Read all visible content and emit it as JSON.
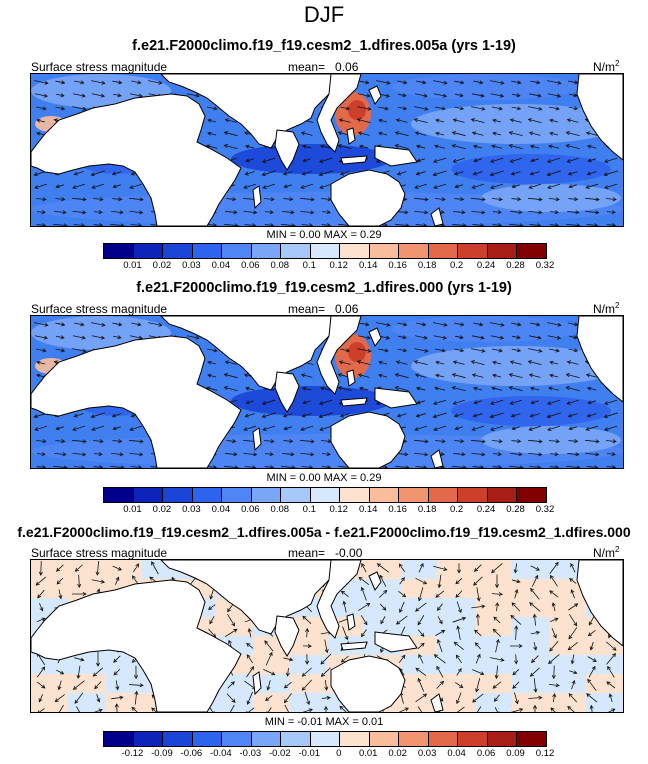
{
  "title": "DJF",
  "colors": {
    "seq": [
      "#00008b",
      "#0c24ba",
      "#1a45d6",
      "#2d64ec",
      "#4f86f4",
      "#79a6f7",
      "#a8c8fa",
      "#d6e8fd",
      "#fde3cf",
      "#f9bd9c",
      "#f19470",
      "#e26a4b",
      "#cb3f2b",
      "#a71e17",
      "#800000"
    ],
    "diff": [
      "#00008b",
      "#0c24ba",
      "#1a45d6",
      "#2d64ec",
      "#4f86f4",
      "#79a6f7",
      "#a8c8fa",
      "#d6e8fd",
      "#fde3cf",
      "#f9bd9c",
      "#f19470",
      "#e26a4b",
      "#cb3f2b",
      "#a71e17",
      "#800000"
    ]
  },
  "panels": [
    {
      "title": "f.e21.F2000climo.f19_f19.cesm2_1.dfires.005a (yrs 1-19)",
      "variable": "Surface stress magnitude",
      "mean_label": "mean=",
      "mean_value": "0.06",
      "units": "N/m",
      "units_exp": "2",
      "minmax": "MIN =   0.00 MAX =   0.29",
      "colorbar_labels": [
        "0.01",
        "0.02",
        "0.03",
        "0.04",
        "0.06",
        "0.08",
        "0.1",
        "0.12",
        "0.14",
        "0.16",
        "0.18",
        "0.2",
        "0.24",
        "0.28",
        "0.32"
      ]
    },
    {
      "title": "f.e21.F2000climo.f19_f19.cesm2_1.dfires.000 (yrs 1-19)",
      "variable": "Surface stress magnitude",
      "mean_label": "mean=",
      "mean_value": "0.06",
      "units": "N/m",
      "units_exp": "2",
      "minmax": "MIN =   0.00 MAX =   0.29",
      "colorbar_labels": [
        "0.01",
        "0.02",
        "0.03",
        "0.04",
        "0.06",
        "0.08",
        "0.1",
        "0.12",
        "0.14",
        "0.16",
        "0.18",
        "0.2",
        "0.24",
        "0.28",
        "0.32"
      ]
    },
    {
      "title": "f.e21.F2000climo.f19_f19.cesm2_1.dfires.005a - f.e21.F2000climo.f19_f19.cesm2_1.dfires.000",
      "variable": "Surface stress magnitude",
      "mean_label": "mean=",
      "mean_value": "-0.00",
      "units": "N/m",
      "units_exp": "2",
      "minmax": "MIN =  -0.01 MAX =   0.01",
      "colorbar_labels": [
        "-0.12",
        "-0.09",
        "-0.06",
        "-0.04",
        "-0.03",
        "-0.02",
        "-0.01",
        "0",
        "0.01",
        "0.02",
        "0.03",
        "0.04",
        "0.06",
        "0.09",
        "0.12"
      ]
    }
  ]
}
